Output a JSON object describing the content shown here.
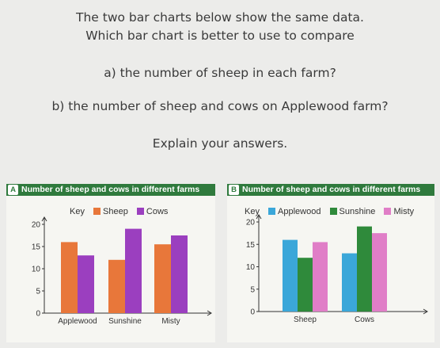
{
  "question": {
    "line1": "The two bar charts below show the same data.",
    "line2": "Which bar chart is better to use to compare",
    "part_a": "a) the number of sheep in each farm?",
    "part_b": "b) the number of sheep and cows on Applewood farm?",
    "explain": "Explain your answers."
  },
  "chart_data": [
    {
      "id": "A",
      "type": "bar",
      "title": "Number of sheep and cows in different farms",
      "key_label": "Key",
      "categories": [
        "Applewood",
        "Sunshine",
        "Misty"
      ],
      "series": [
        {
          "name": "Sheep",
          "values": [
            16,
            12,
            15.5
          ],
          "color": "#e8773a"
        },
        {
          "name": "Cows",
          "values": [
            13,
            19,
            17.5
          ],
          "color": "#9b3fbf"
        }
      ],
      "y_ticks": [
        0,
        5,
        10,
        15,
        20
      ],
      "ylim": [
        0,
        20
      ],
      "grid": false,
      "legend": "top"
    },
    {
      "id": "B",
      "type": "bar",
      "title": "Number of sheep and cows in different farms",
      "key_label": "Key",
      "categories": [
        "Sheep",
        "Cows"
      ],
      "series": [
        {
          "name": "Applewood",
          "values": [
            16,
            13
          ],
          "color": "#3ba7d9"
        },
        {
          "name": "Sunshine",
          "values": [
            12,
            19
          ],
          "color": "#2f8a3b"
        },
        {
          "name": "Misty",
          "values": [
            15.5,
            17.5
          ],
          "color": "#e07ec7"
        }
      ],
      "y_ticks": [
        0,
        5,
        10,
        15,
        20
      ],
      "ylim": [
        0,
        20
      ],
      "grid": false,
      "legend": "top"
    }
  ]
}
